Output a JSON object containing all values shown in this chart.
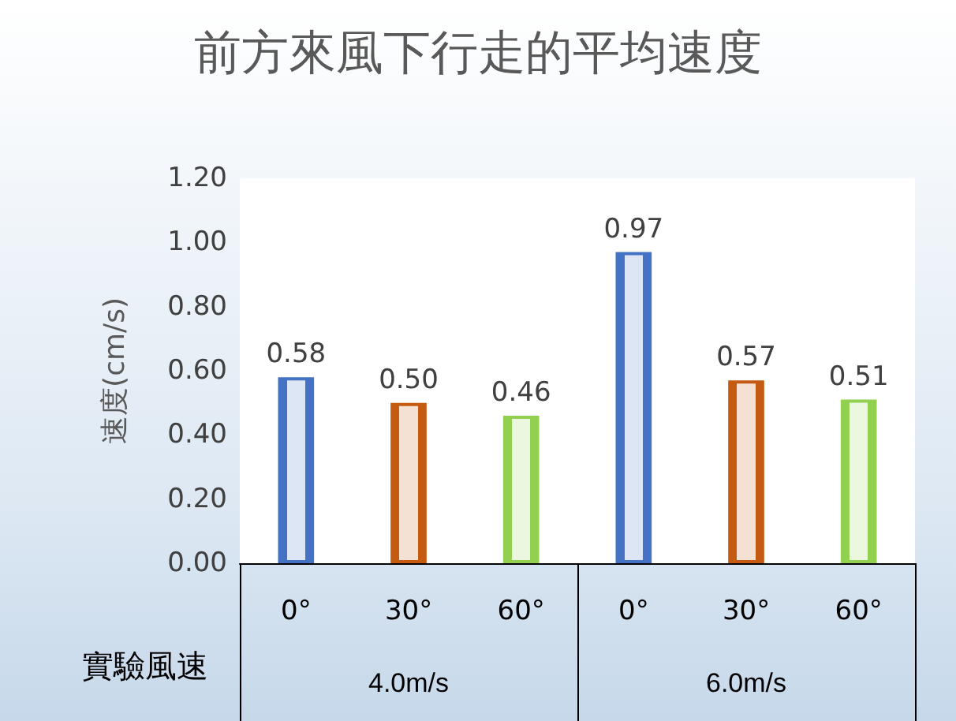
{
  "chart_data": {
    "type": "bar",
    "title": "前方來風下行走的平均速度",
    "xlabel": "實驗風速",
    "ylabel": "速度(cm/s)",
    "categories": [
      "0°",
      "30°",
      "60°",
      "0°",
      "30°",
      "60°"
    ],
    "values": [
      0.58,
      0.5,
      0.46,
      0.97,
      0.57,
      0.51
    ],
    "value_labels": [
      "0.58",
      "0.50",
      "0.46",
      "0.97",
      "0.57",
      "0.51"
    ],
    "colors": [
      "#4472c4",
      "#c55a11",
      "#92d050",
      "#4472c4",
      "#c55a11",
      "#92d050"
    ],
    "ylim": [
      0,
      1.2
    ],
    "yticks": [
      {
        "value": 0,
        "label": "0.00"
      },
      {
        "value": 0.2,
        "label": "0.20"
      },
      {
        "value": 0.4,
        "label": "0.40"
      },
      {
        "value": 0.6,
        "label": "0.60"
      },
      {
        "value": 0.8,
        "label": "0.80"
      },
      {
        "value": 1,
        "label": "1.00"
      },
      {
        "value": 1.2,
        "label": "1.20"
      }
    ],
    "annotations": [
      "4.0m/s",
      "6.0m/s"
    ]
  }
}
